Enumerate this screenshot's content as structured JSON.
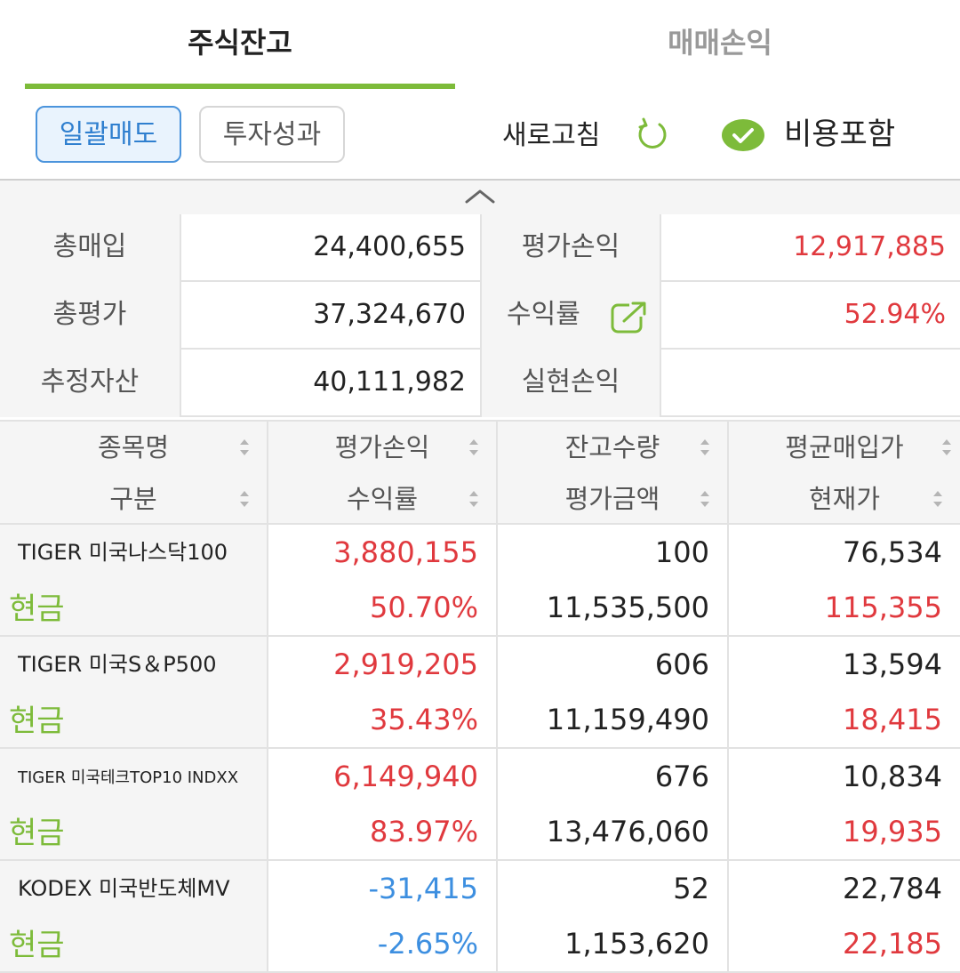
{
  "tabs": [
    {
      "label": "주식잔고",
      "active": true
    },
    {
      "label": "매매손익",
      "active": false
    }
  ],
  "toolbar": {
    "bulk_sell": "일괄매도",
    "performance": "투자성과",
    "refresh": "새로고침",
    "include_fee": "비용포함",
    "include_fee_checked": true
  },
  "summary": [
    {
      "label1": "총매입",
      "value1": "24,400,655",
      "label2": "평가손익",
      "value2": "12,917,885",
      "value2_color": "red"
    },
    {
      "label1": "총평가",
      "value1": "37,324,670",
      "label2": "수익률",
      "value2": "52.94%",
      "value2_color": "red"
    },
    {
      "label1": "추정자산",
      "value1": "40,111,982",
      "label2": "실현손익",
      "value2": "",
      "value2_color": ""
    }
  ],
  "table": {
    "headers": [
      {
        "top": "종목명",
        "bottom": "구분"
      },
      {
        "top": "평가손익",
        "bottom": "수익률"
      },
      {
        "top": "잔고수량",
        "bottom": "평가금액"
      },
      {
        "top": "평균매입가",
        "bottom": "현재가"
      }
    ],
    "rows": [
      {
        "name": "TIGER 미국나스닥100",
        "type": "현금",
        "pl": "3,880,155",
        "rate": "50.70%",
        "qty": "100",
        "eval": "11,535,500",
        "avg": "76,534",
        "cur": "115,355",
        "sign": "up"
      },
      {
        "name": "TIGER 미국S＆P500",
        "type": "현금",
        "pl": "2,919,205",
        "rate": "35.43%",
        "qty": "606",
        "eval": "11,159,490",
        "avg": "13,594",
        "cur": "18,415",
        "sign": "up"
      },
      {
        "name": "TIGER 미국테크TOP10 INDXX",
        "type": "현금",
        "pl": "6,149,940",
        "rate": "83.97%",
        "qty": "676",
        "eval": "13,476,060",
        "avg": "10,834",
        "cur": "19,935",
        "sign": "up"
      },
      {
        "name": "KODEX 미국반도체MV",
        "type": "현금",
        "pl": "-31,415",
        "rate": "-2.65%",
        "qty": "52",
        "eval": "1,153,620",
        "avg": "22,784",
        "cur": "22,185",
        "sign": "down"
      }
    ]
  },
  "colors": {
    "accent_green": "#7dbb3a",
    "up_red": "#e0393e",
    "down_blue": "#3d8fe0",
    "select_blue": "#4b94dc"
  }
}
